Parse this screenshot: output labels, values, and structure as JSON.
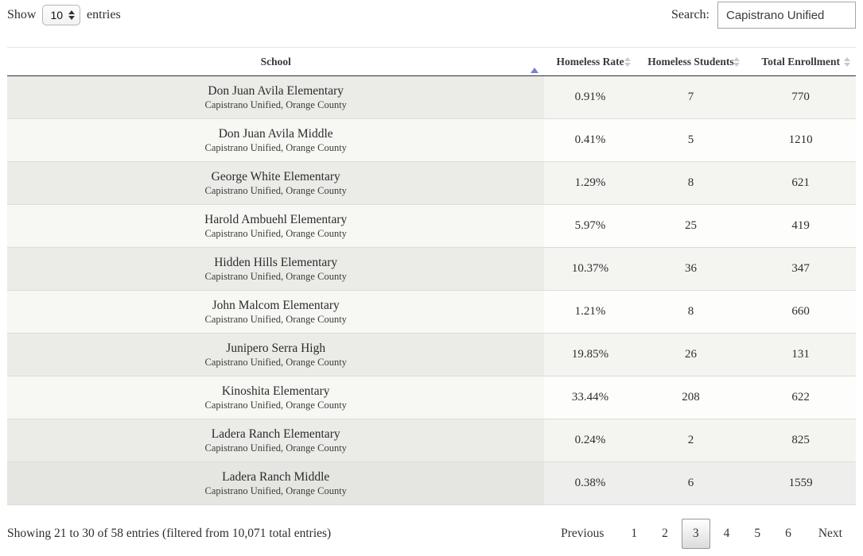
{
  "controls": {
    "show_label": "Show",
    "page_length": "10",
    "entries_label": "entries",
    "search_label": "Search:",
    "search_value": "Capistrano Unified"
  },
  "table": {
    "columns": [
      {
        "label": "School",
        "sort": "asc"
      },
      {
        "label": "Homeless Rate",
        "sort": "none"
      },
      {
        "label": "Homeless Students",
        "sort": "none"
      },
      {
        "label": "Total Enrollment",
        "sort": "none"
      }
    ],
    "rows": [
      {
        "school": "Don Juan Avila Elementary",
        "district": "Capistrano Unified, Orange County",
        "rate": "0.91%",
        "students": "7",
        "enrollment": "770"
      },
      {
        "school": "Don Juan Avila Middle",
        "district": "Capistrano Unified, Orange County",
        "rate": "0.41%",
        "students": "5",
        "enrollment": "1210"
      },
      {
        "school": "George White Elementary",
        "district": "Capistrano Unified, Orange County",
        "rate": "1.29%",
        "students": "8",
        "enrollment": "621"
      },
      {
        "school": "Harold Ambuehl Elementary",
        "district": "Capistrano Unified, Orange County",
        "rate": "5.97%",
        "students": "25",
        "enrollment": "419"
      },
      {
        "school": "Hidden Hills Elementary",
        "district": "Capistrano Unified, Orange County",
        "rate": "10.37%",
        "students": "36",
        "enrollment": "347"
      },
      {
        "school": "John Malcom Elementary",
        "district": "Capistrano Unified, Orange County",
        "rate": "1.21%",
        "students": "8",
        "enrollment": "660"
      },
      {
        "school": "Junipero Serra High",
        "district": "Capistrano Unified, Orange County",
        "rate": "19.85%",
        "students": "26",
        "enrollment": "131"
      },
      {
        "school": "Kinoshita Elementary",
        "district": "Capistrano Unified, Orange County",
        "rate": "33.44%",
        "students": "208",
        "enrollment": "622"
      },
      {
        "school": "Ladera Ranch Elementary",
        "district": "Capistrano Unified, Orange County",
        "rate": "0.24%",
        "students": "2",
        "enrollment": "825"
      },
      {
        "school": "Ladera Ranch Middle",
        "district": "Capistrano Unified, Orange County",
        "rate": "0.38%",
        "students": "6",
        "enrollment": "1559",
        "highlighted": true
      }
    ]
  },
  "footer": {
    "info": "Showing 21 to 30 of 58 entries (filtered from 10,071 total entries)",
    "pagination": {
      "previous_label": "Previous",
      "pages": [
        "1",
        "2",
        "3",
        "4",
        "5",
        "6"
      ],
      "current_page": "3",
      "next_label": "Next"
    }
  },
  "colors": {
    "sort_active": "#7b7ed2",
    "sort_inactive": "#c9c9c9",
    "stripe_sorted_odd": "#ebebe8",
    "stripe_odd": "#f4f4f1",
    "stripe_sorted_even": "#f7f7f4",
    "stripe_even": "#fdfdfc",
    "header_border": "#2f2f2f"
  }
}
